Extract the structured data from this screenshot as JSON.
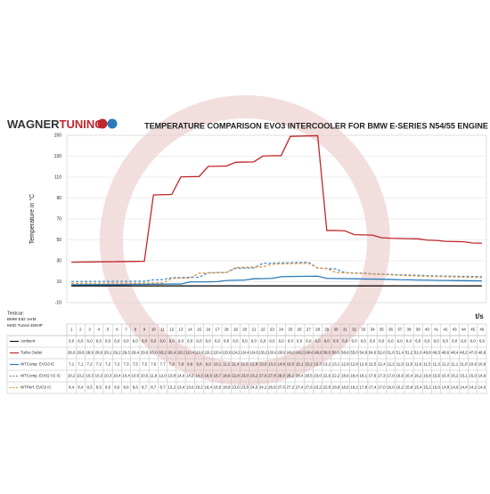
{
  "chart_data": {
    "type": "line",
    "logo": [
      "WAGNER",
      "TUNING"
    ],
    "title": "TEMPERATURE COMPARISON EVO3 INTERCOOLER FOR BMW E-SERIES N54/55 ENGINE",
    "y_label": "Temperature in °C",
    "x_label": "t/s",
    "testcar": [
      "Testcar:",
      "BMW E82 1erM",
      "MHD Tuned 450HP"
    ],
    "x": [
      1,
      2,
      3,
      4,
      5,
      6,
      7,
      8,
      9,
      10,
      11,
      12,
      13,
      14,
      15,
      16,
      17,
      18,
      19,
      20,
      21,
      22,
      23,
      24,
      25,
      26,
      27,
      28,
      29,
      30,
      31,
      32,
      33,
      34,
      35,
      36,
      37,
      38,
      39,
      40,
      41,
      42,
      43,
      44,
      45,
      46
    ],
    "xlim": [
      0.5,
      46.5
    ],
    "ylim": [
      -10,
      150
    ],
    "yticks": [
      150,
      130,
      110,
      90,
      70,
      50,
      30,
      10,
      -10
    ],
    "grid": true,
    "series": [
      {
        "name": "Ambient",
        "color": "#111111",
        "dash": false,
        "values": [
          6,
          6,
          6,
          6,
          6,
          6,
          6,
          6,
          6,
          6,
          6,
          6,
          6,
          6,
          6,
          6,
          6,
          6,
          6,
          6,
          6,
          6,
          6,
          6,
          6,
          6,
          6,
          6,
          6,
          6,
          6,
          6,
          6,
          6,
          6,
          6,
          6,
          6,
          6,
          6,
          6,
          6,
          6,
          6,
          6,
          6
        ],
        "value_labels": [
          "6,0",
          "6,0",
          "6,0",
          "6,0",
          "6,0",
          "6,0",
          "6,0",
          "6,0",
          "6,0",
          "6,0",
          "6,0",
          "6,0",
          "6,0",
          "6,0",
          "6,0",
          "6,0",
          "6,0",
          "6,0",
          "6,0",
          "6,0",
          "6,0",
          "6,0",
          "6,0",
          "6,0",
          "6,0",
          "6,0",
          "6,0",
          "6,0",
          "6,0",
          "6,0",
          "6,0",
          "6,0",
          "6,0",
          "6,0",
          "6,0",
          "6,0",
          "6,0",
          "6,0",
          "6,0",
          "6,0",
          "6,0",
          "6,0",
          "6,0",
          "6,0",
          "6,0",
          "6,0"
        ]
      },
      {
        "name": "Turbo Outlet",
        "color": "#c0272d",
        "dash": false,
        "values": [
          28.6,
          28.8,
          28.9,
          29.0,
          29.1,
          29.2,
          29.3,
          29.4,
          29.6,
          93.0,
          93.2,
          93.4,
          110.2,
          110.4,
          110.6,
          120.2,
          120.4,
          120.6,
          124.2,
          124.4,
          124.6,
          130.2,
          130.4,
          130.6,
          149.0,
          149.2,
          149.4,
          149.6,
          59.0,
          59.0,
          58.6,
          55.0,
          54.8,
          54.6,
          52.0,
          51.6,
          51.4,
          51.2,
          51.0,
          49.8,
          49.5,
          48.6,
          48.4,
          48.2,
          47.0,
          46.8
        ],
        "value_labels": [
          "28,6",
          "28,8",
          "28,9",
          "29,0",
          "29,1",
          "29,2",
          "29,3",
          "29,4",
          "29,6",
          "93,0",
          "93,2",
          "93,4",
          "110,2",
          "110,4",
          "110,6",
          "120,2",
          "120,4",
          "120,6",
          "124,2",
          "124,4",
          "124,6",
          "130,2",
          "130,4",
          "130,6",
          "149,0",
          "149,2",
          "149,4",
          "149,6",
          "59,0",
          "59,0",
          "58,6",
          "55,0",
          "54,8",
          "54,6",
          "52,0",
          "51,6",
          "51,4",
          "51,2",
          "51,0",
          "49,8",
          "49,5",
          "48,6",
          "48,4",
          "48,2",
          "47,0",
          "46,8"
        ]
      },
      {
        "name": "WTComp. EVO3 IC",
        "color": "#2a7ab8",
        "dash": false,
        "values": [
          7.1,
          7.1,
          7.2,
          7.2,
          7.2,
          7.2,
          7.3,
          7.5,
          7.5,
          7.6,
          7.7,
          7.8,
          7.8,
          9.8,
          9.8,
          9.9,
          10.1,
          11.2,
          11.4,
          11.6,
          12.8,
          13.0,
          13.2,
          14.8,
          15.0,
          15.1,
          15.2,
          15.3,
          13.2,
          13.1,
          12.9,
          12.8,
          12.6,
          12.5,
          12.4,
          12.2,
          11.9,
          11.8,
          11.6,
          11.5,
          11.3,
          11.2,
          11.1,
          11.0,
          10.9,
          10.8
        ],
        "value_labels": [
          "7,1",
          "7,1",
          "7,2",
          "7,2",
          "7,2",
          "7,2",
          "7,3",
          "7,5",
          "7,5",
          "7,6",
          "7,7",
          "7,8",
          "7,8",
          "9,8",
          "9,8",
          "9,9",
          "10,1",
          "11,2",
          "11,4",
          "11,6",
          "12,8",
          "13,0",
          "13,2",
          "14,8",
          "15,0",
          "15,1",
          "15,2",
          "15,3",
          "13,2",
          "13,1",
          "12,9",
          "12,8",
          "12,6",
          "12,5",
          "12,4",
          "12,2",
          "11,9",
          "11,8",
          "11,6",
          "11,5",
          "11,3",
          "11,2",
          "11,1",
          "11,0",
          "10,9",
          "10,8"
        ]
      },
      {
        "name": "WTComp. EVO2 V2 IC",
        "color": "#4a90c8",
        "dash": true,
        "values": [
          10.2,
          10.2,
          10.3,
          10.3,
          10.3,
          10.4,
          10.4,
          10.5,
          10.5,
          11.8,
          12.0,
          13.8,
          14.0,
          14.2,
          14.3,
          18.5,
          18.7,
          18.9,
          22.8,
          23.0,
          23.2,
          27.6,
          27.8,
          28.0,
          28.2,
          28.4,
          28.5,
          23.0,
          22.6,
          22.2,
          18.6,
          18.4,
          18.1,
          17.6,
          17.3,
          17.0,
          16.6,
          16.4,
          16.2,
          15.8,
          15.6,
          15.4,
          15.2,
          15.1,
          15.0,
          14.9
        ],
        "value_labels": [
          "10,2",
          "10,2",
          "10,3",
          "10,3",
          "10,3",
          "10,4",
          "10,4",
          "10,5",
          "10,5",
          "11,8",
          "12,0",
          "13,8",
          "14,0",
          "14,2",
          "14,3",
          "18,5",
          "18,7",
          "18,9",
          "22,8",
          "23,0",
          "23,2",
          "27,6",
          "27,8",
          "28,0",
          "28,2",
          "28,4",
          "28,5",
          "23,0",
          "22,6",
          "22,2",
          "18,6",
          "18,4",
          "18,1",
          "17,6",
          "17,3",
          "17,0",
          "16,6",
          "16,4",
          "16,2",
          "15,8",
          "15,6",
          "15,4",
          "15,2",
          "15,1",
          "15,0",
          "14,9"
        ]
      },
      {
        "name": "WTPerf. EVO2 IC",
        "color": "#d9964a",
        "dash": true,
        "values": [
          8.4,
          8.4,
          8.5,
          8.5,
          8.5,
          8.6,
          8.6,
          8.6,
          8.7,
          8.7,
          8.7,
          13.2,
          13.4,
          13.6,
          18.2,
          18.4,
          18.6,
          18.8,
          23.6,
          23.8,
          24.0,
          24.2,
          26.8,
          27.0,
          27.2,
          27.4,
          27.6,
          23.2,
          22.8,
          18.8,
          18.6,
          18.2,
          17.8,
          17.4,
          17.0,
          16.6,
          16.2,
          15.8,
          15.4,
          15.2,
          15.0,
          14.8,
          14.6,
          14.4,
          14.2,
          14.0
        ],
        "value_labels": [
          "8,4",
          "8,4",
          "8,5",
          "8,5",
          "8,5",
          "8,6",
          "8,6",
          "8,6",
          "8,7",
          "8,7",
          "8,7",
          "13,2",
          "13,4",
          "13,6",
          "18,2",
          "18,4",
          "18,6",
          "18,8",
          "23,6",
          "23,8",
          "24,0",
          "24,2",
          "26,8",
          "27,0",
          "27,2",
          "27,4",
          "27,6",
          "23,2",
          "22,8",
          "18,8",
          "18,6",
          "18,2",
          "17,8",
          "17,4",
          "17,0",
          "16,6",
          "16,2",
          "15,8",
          "15,4",
          "15,2",
          "15,0",
          "14,8",
          "14,6",
          "14,4",
          "14,2",
          "14,0"
        ]
      }
    ]
  }
}
